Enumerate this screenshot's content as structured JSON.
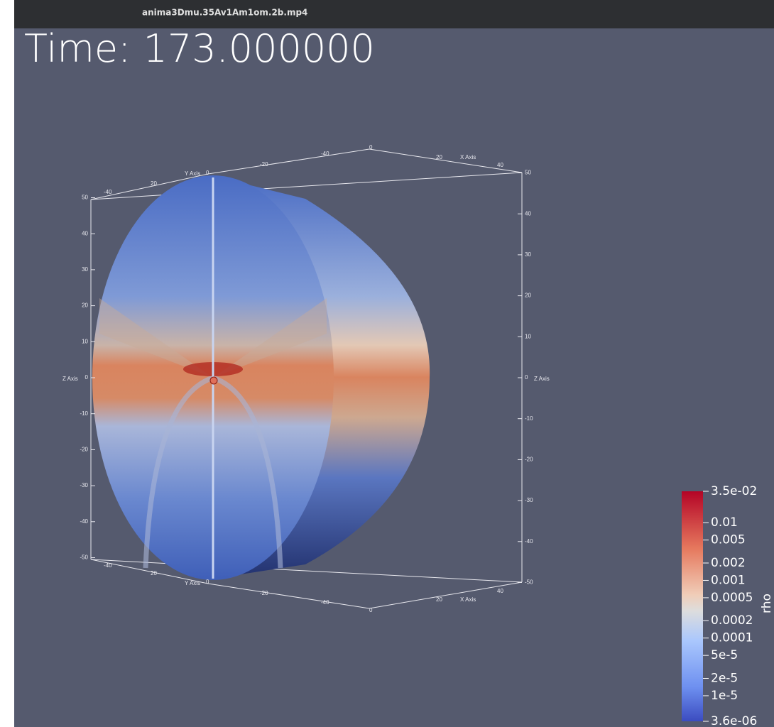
{
  "window": {
    "title": "anima3Dmu.35Av1Am1om.2b.mp4"
  },
  "scene": {
    "time_label": "Time: 173.000000",
    "z_axis_left": {
      "title": "Z Axis",
      "ticks": [
        50,
        40,
        30,
        20,
        10,
        0,
        -10,
        -20,
        -30,
        -40,
        -50
      ]
    },
    "z_axis_right": {
      "title": "Z Axis",
      "ticks": [
        50,
        40,
        30,
        20,
        10,
        0,
        -10,
        -20,
        -30,
        -40,
        -50
      ]
    },
    "top_x_labels": [
      -40,
      -20,
      0,
      20,
      "X Axis",
      40
    ],
    "top_y_labels": [
      -40,
      20,
      "Y Axis",
      0
    ],
    "bottom_y_labels": [
      -40,
      20,
      "Y Axis",
      0
    ],
    "bottom_x_labels": [
      -20,
      -40,
      0,
      20,
      "X Axis",
      40
    ]
  },
  "colorbar": {
    "title": "rho",
    "ticks": [
      {
        "value": 0.035,
        "label": "3.5e-02"
      },
      {
        "value": 0.01,
        "label": "0.01"
      },
      {
        "value": 0.005,
        "label": "0.005"
      },
      {
        "value": 0.002,
        "label": "0.002"
      },
      {
        "value": 0.001,
        "label": "0.001"
      },
      {
        "value": 0.0005,
        "label": "0.0005"
      },
      {
        "value": 0.0002,
        "label": "0.0002"
      },
      {
        "value": 0.0001,
        "label": "0.0001"
      },
      {
        "value": 5e-05,
        "label": "5e-5"
      },
      {
        "value": 2e-05,
        "label": "2e-5"
      },
      {
        "value": 1e-05,
        "label": "1e-5"
      },
      {
        "value": 3.6e-06,
        "label": "3.6e-06"
      }
    ]
  }
}
